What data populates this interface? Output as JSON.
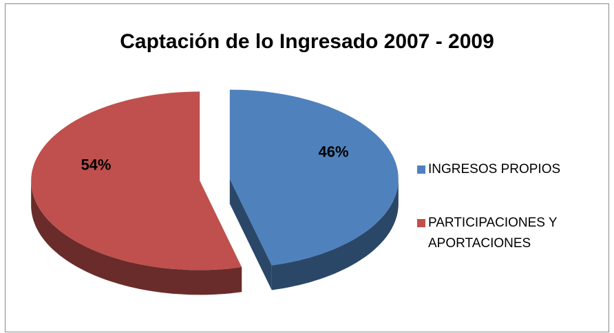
{
  "chart_data": {
    "type": "pie",
    "title": "Captación de lo Ingresado 2007 - 2009",
    "categories": [
      "INGRESOS PROPIOS",
      "PARTICIPACIONES Y APORTACIONES"
    ],
    "values": [
      46,
      54
    ],
    "value_labels": [
      "46%",
      "54%"
    ],
    "colors": [
      "#4f81bd",
      "#c0504d"
    ],
    "legend": "right"
  }
}
